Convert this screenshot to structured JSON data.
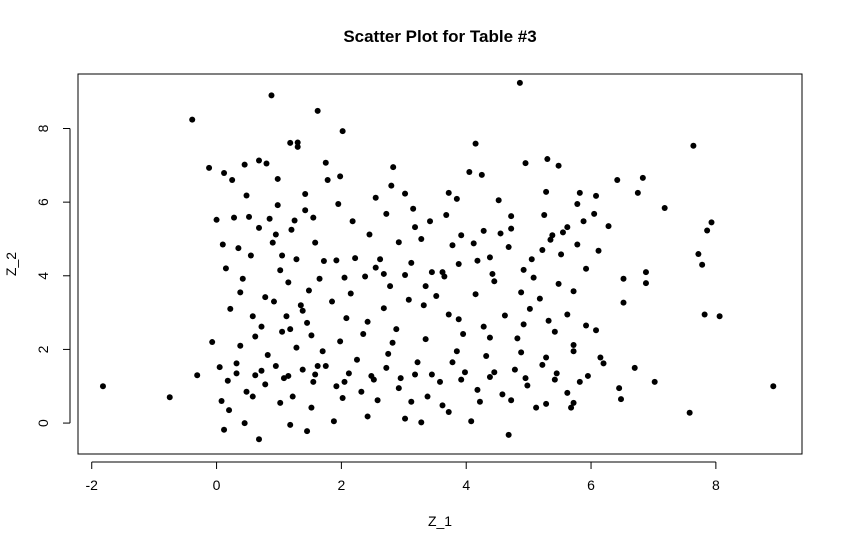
{
  "chart_data": {
    "type": "scatter",
    "title": "Scatter Plot for Table #3",
    "xlabel": "Z_1",
    "ylabel": "Z_2",
    "xlim": [
      -2.22,
      9.38
    ],
    "ylim": [
      -0.84,
      9.48
    ],
    "x_ticks": [
      -2,
      0,
      2,
      4,
      6,
      8
    ],
    "y_ticks": [
      0,
      2,
      4,
      6,
      8
    ],
    "grid": false,
    "legend": "none",
    "point_color": "#000000",
    "points": [
      [
        -1.82,
        1.0
      ],
      [
        -0.75,
        0.7
      ],
      [
        -0.39,
        8.24
      ],
      [
        -0.31,
        1.3
      ],
      [
        -0.12,
        6.93
      ],
      [
        -0.07,
        2.2
      ],
      [
        0.0,
        5.52
      ],
      [
        0.12,
        6.79
      ],
      [
        0.25,
        6.6
      ],
      [
        0.45,
        7.02
      ],
      [
        0.68,
        7.13
      ],
      [
        0.8,
        7.05
      ],
      [
        0.88,
        8.9
      ],
      [
        0.98,
        6.63
      ],
      [
        1.18,
        7.61
      ],
      [
        1.3,
        7.62
      ],
      [
        1.3,
        7.5
      ],
      [
        1.62,
        8.48
      ],
      [
        1.75,
        7.07
      ],
      [
        1.78,
        6.6
      ],
      [
        1.98,
        6.7
      ],
      [
        2.02,
        7.93
      ],
      [
        2.8,
        6.45
      ],
      [
        2.83,
        6.95
      ],
      [
        3.02,
        6.23
      ],
      [
        3.85,
        6.09
      ],
      [
        4.05,
        6.82
      ],
      [
        4.15,
        7.59
      ],
      [
        4.25,
        6.74
      ],
      [
        4.86,
        9.24
      ],
      [
        4.95,
        7.06
      ],
      [
        5.3,
        7.17
      ],
      [
        5.48,
        6.99
      ],
      [
        5.82,
        6.25
      ],
      [
        6.08,
        6.17
      ],
      [
        6.42,
        6.6
      ],
      [
        6.75,
        6.25
      ],
      [
        6.83,
        6.66
      ],
      [
        7.18,
        5.84
      ],
      [
        7.64,
        7.53
      ],
      [
        0.1,
        4.85
      ],
      [
        0.35,
        4.75
      ],
      [
        0.52,
        5.6
      ],
      [
        0.68,
        5.3
      ],
      [
        0.9,
        4.9
      ],
      [
        1.05,
        4.55
      ],
      [
        1.25,
        5.5
      ],
      [
        1.42,
        5.78
      ],
      [
        1.58,
        4.9
      ],
      [
        1.72,
        4.4
      ],
      [
        2.05,
        3.95
      ],
      [
        2.22,
        4.48
      ],
      [
        2.38,
        3.98
      ],
      [
        2.55,
        4.22
      ],
      [
        2.78,
        3.72
      ],
      [
        2.92,
        4.91
      ],
      [
        3.12,
        4.35
      ],
      [
        3.28,
        5.0
      ],
      [
        3.42,
        5.48
      ],
      [
        3.62,
        4.1
      ],
      [
        3.78,
        4.83
      ],
      [
        3.92,
        5.1
      ],
      [
        4.18,
        4.41
      ],
      [
        4.38,
        4.5
      ],
      [
        4.55,
        5.15
      ],
      [
        4.68,
        4.78
      ],
      [
        4.92,
        4.16
      ],
      [
        5.08,
        3.95
      ],
      [
        5.22,
        4.7
      ],
      [
        5.38,
        5.1
      ],
      [
        5.52,
        4.58
      ],
      [
        5.78,
        4.85
      ],
      [
        5.92,
        4.19
      ],
      [
        6.12,
        4.68
      ],
      [
        6.52,
        3.92
      ],
      [
        6.88,
        4.1
      ],
      [
        6.88,
        3.8
      ],
      [
        7.72,
        4.59
      ],
      [
        7.78,
        4.3
      ],
      [
        7.86,
        5.23
      ],
      [
        7.93,
        5.45
      ],
      [
        0.22,
        3.1
      ],
      [
        0.38,
        3.55
      ],
      [
        0.58,
        2.9
      ],
      [
        0.72,
        2.62
      ],
      [
        0.92,
        3.3
      ],
      [
        1.12,
        2.9
      ],
      [
        1.18,
        2.55
      ],
      [
        1.35,
        3.2
      ],
      [
        1.52,
        2.38
      ],
      [
        1.7,
        1.95
      ],
      [
        2.08,
        2.85
      ],
      [
        2.42,
        2.75
      ],
      [
        2.68,
        3.12
      ],
      [
        2.88,
        2.55
      ],
      [
        3.08,
        3.35
      ],
      [
        3.32,
        3.2
      ],
      [
        3.52,
        3.45
      ],
      [
        3.72,
        2.95
      ],
      [
        3.95,
        2.42
      ],
      [
        4.28,
        2.62
      ],
      [
        4.62,
        2.92
      ],
      [
        4.82,
        2.3
      ],
      [
        5.02,
        3.1
      ],
      [
        5.32,
        2.78
      ],
      [
        5.62,
        2.95
      ],
      [
        5.72,
        2.12
      ],
      [
        6.08,
        2.52
      ],
      [
        6.52,
        3.27
      ],
      [
        7.82,
        2.95
      ],
      [
        8.06,
        2.9
      ],
      [
        0.05,
        1.52
      ],
      [
        0.18,
        1.15
      ],
      [
        0.32,
        1.62
      ],
      [
        0.48,
        0.85
      ],
      [
        0.62,
        1.3
      ],
      [
        0.78,
        1.05
      ],
      [
        0.95,
        1.55
      ],
      [
        1.08,
        1.22
      ],
      [
        1.22,
        0.72
      ],
      [
        1.38,
        1.45
      ],
      [
        1.55,
        1.12
      ],
      [
        1.75,
        1.55
      ],
      [
        1.92,
        1.0
      ],
      [
        2.12,
        1.35
      ],
      [
        2.32,
        0.85
      ],
      [
        2.52,
        1.18
      ],
      [
        2.72,
        1.5
      ],
      [
        2.92,
        0.95
      ],
      [
        3.18,
        1.32
      ],
      [
        3.38,
        0.72
      ],
      [
        3.58,
        1.12
      ],
      [
        3.78,
        1.65
      ],
      [
        3.98,
        1.38
      ],
      [
        4.18,
        0.9
      ],
      [
        4.38,
        1.25
      ],
      [
        4.58,
        0.78
      ],
      [
        4.78,
        1.45
      ],
      [
        4.98,
        1.02
      ],
      [
        5.22,
        1.58
      ],
      [
        5.42,
        1.18
      ],
      [
        5.62,
        0.82
      ],
      [
        5.82,
        1.12
      ],
      [
        6.2,
        1.62
      ],
      [
        6.45,
        0.95
      ],
      [
        6.7,
        1.5
      ],
      [
        7.02,
        1.12
      ],
      [
        0.08,
        0.6
      ],
      [
        0.12,
        -0.18
      ],
      [
        0.45,
        0.0
      ],
      [
        0.68,
        -0.44
      ],
      [
        1.18,
        -0.05
      ],
      [
        1.45,
        -0.22
      ],
      [
        1.88,
        0.05
      ],
      [
        2.42,
        0.18
      ],
      [
        3.02,
        0.12
      ],
      [
        3.28,
        0.02
      ],
      [
        3.72,
        0.3
      ],
      [
        4.08,
        0.05
      ],
      [
        4.68,
        -0.32
      ],
      [
        5.12,
        0.42
      ],
      [
        5.68,
        0.42
      ],
      [
        7.58,
        0.28
      ],
      [
        8.92,
        1.0
      ],
      [
        0.28,
        5.58
      ],
      [
        0.55,
        4.55
      ],
      [
        0.78,
        3.42
      ],
      [
        1.02,
        4.15
      ],
      [
        1.28,
        4.45
      ],
      [
        1.48,
        3.6
      ],
      [
        1.85,
        3.3
      ],
      [
        2.15,
        3.52
      ],
      [
        2.62,
        4.45
      ],
      [
        3.45,
        4.1
      ],
      [
        4.15,
        3.5
      ],
      [
        4.45,
        3.85
      ],
      [
        4.88,
        3.55
      ],
      [
        5.18,
        3.38
      ],
      [
        5.48,
        3.78
      ],
      [
        5.72,
        3.58
      ],
      [
        0.38,
        2.1
      ],
      [
        0.82,
        1.85
      ],
      [
        1.28,
        2.05
      ],
      [
        1.62,
        1.55
      ],
      [
        2.25,
        1.72
      ],
      [
        2.75,
        1.88
      ],
      [
        3.22,
        1.65
      ],
      [
        3.85,
        1.95
      ],
      [
        4.32,
        1.82
      ],
      [
        4.88,
        1.92
      ],
      [
        5.28,
        1.78
      ],
      [
        5.72,
        1.95
      ],
      [
        6.15,
        1.78
      ],
      [
        0.2,
        0.35
      ],
      [
        0.58,
        0.72
      ],
      [
        1.02,
        0.55
      ],
      [
        1.52,
        0.42
      ],
      [
        2.02,
        0.68
      ],
      [
        2.58,
        0.62
      ],
      [
        3.12,
        0.58
      ],
      [
        3.62,
        0.48
      ],
      [
        4.22,
        0.58
      ],
      [
        4.72,
        0.62
      ],
      [
        5.28,
        0.52
      ],
      [
        5.72,
        0.55
      ],
      [
        6.48,
        0.65
      ],
      [
        0.15,
        4.2
      ],
      [
        0.42,
        3.92
      ],
      [
        0.95,
        5.12
      ],
      [
        1.15,
        3.82
      ],
      [
        1.38,
        3.05
      ],
      [
        1.65,
        3.92
      ],
      [
        1.92,
        4.42
      ],
      [
        2.45,
        5.12
      ],
      [
        2.68,
        4.05
      ],
      [
        3.02,
        4.02
      ],
      [
        3.35,
        3.72
      ],
      [
        3.65,
        3.98
      ],
      [
        3.88,
        4.32
      ],
      [
        4.12,
        4.88
      ],
      [
        4.42,
        4.05
      ],
      [
        4.72,
        5.62
      ],
      [
        5.05,
        4.45
      ],
      [
        5.35,
        4.98
      ],
      [
        5.62,
        5.32
      ],
      [
        5.88,
        5.48
      ],
      [
        0.62,
        2.35
      ],
      [
        1.05,
        2.48
      ],
      [
        1.45,
        2.72
      ],
      [
        1.98,
        2.22
      ],
      [
        2.35,
        2.42
      ],
      [
        2.82,
        2.18
      ],
      [
        3.35,
        2.28
      ],
      [
        3.88,
        2.82
      ],
      [
        4.38,
        2.32
      ],
      [
        4.92,
        2.68
      ],
      [
        5.42,
        2.48
      ],
      [
        5.92,
        2.65
      ],
      [
        0.32,
        1.35
      ],
      [
        0.72,
        1.42
      ],
      [
        1.15,
        1.28
      ],
      [
        1.58,
        1.32
      ],
      [
        2.05,
        1.12
      ],
      [
        2.48,
        1.28
      ],
      [
        2.95,
        1.22
      ],
      [
        3.45,
        1.32
      ],
      [
        3.92,
        1.18
      ],
      [
        4.45,
        1.38
      ],
      [
        4.95,
        1.22
      ],
      [
        5.45,
        1.35
      ],
      [
        5.95,
        1.28
      ],
      [
        0.85,
        5.55
      ],
      [
        1.2,
        5.25
      ],
      [
        1.55,
        5.58
      ],
      [
        2.18,
        5.48
      ],
      [
        2.72,
        5.68
      ],
      [
        3.18,
        5.32
      ],
      [
        3.68,
        5.65
      ],
      [
        4.28,
        5.22
      ],
      [
        4.72,
        5.28
      ],
      [
        5.25,
        5.65
      ],
      [
        5.55,
        5.18
      ],
      [
        6.05,
        5.68
      ],
      [
        0.48,
        6.18
      ],
      [
        0.98,
        5.92
      ],
      [
        1.42,
        6.22
      ],
      [
        1.95,
        5.95
      ],
      [
        2.55,
        6.12
      ],
      [
        3.15,
        5.82
      ],
      [
        3.72,
        6.25
      ],
      [
        4.52,
        6.05
      ],
      [
        5.28,
        6.28
      ],
      [
        5.78,
        5.95
      ],
      [
        6.28,
        5.35
      ]
    ]
  }
}
